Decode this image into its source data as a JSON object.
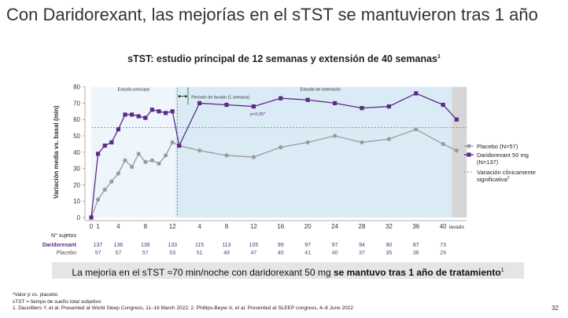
{
  "slide": {
    "title": "Con Daridorexant, las mejorías en el sTST se mantuvieron tras 1 año",
    "chart_title_main": "sTST: estudio principal de 12 semanas y extensión de 40 semanas",
    "chart_title_sup": "1",
    "banner_text": "La mejoría en el sTST ≈70 min/noche con daridorexant 50 mg ",
    "banner_bold": "se mantuvo tras 1 año de tratamiento",
    "banner_sup": "1",
    "footnote_1": "*Valor p vs. placebo",
    "footnote_2": "sTST = tiempo de sueño total subjetivo",
    "footnote_3": "1. Dauvilliers Y, et al. Presented at World Sleep Congress, 11–16 March 2022; 2. Phillips-Beyer A, et al. Presented at SLEEP congress, 4–8 June 2022",
    "page_number": "32"
  },
  "colors": {
    "placebo": "#9a9a9a",
    "daridorexant": "#5b2a86",
    "main_study_bg": "#eef5fb",
    "extension_bg": "#dbebf6",
    "washout_bg": "#ffffff",
    "lavado_bg": "#d6d6d6",
    "threshold": "#777777",
    "washout_arrow": "#2e8b2e"
  },
  "chart_data": {
    "type": "line",
    "title": "sTST: estudio principal de 12 semanas y extensión de 40 semanas",
    "ylabel": "Variación media vs. basal (min)",
    "xlabel": "",
    "ylim": [
      0,
      80
    ],
    "yticks": [
      0,
      10,
      20,
      30,
      40,
      50,
      60,
      70,
      80
    ],
    "threshold": {
      "value": 55,
      "label": "Variación clínicamente significativa",
      "label_sup": "2"
    },
    "regions": {
      "main": "Estudio principal",
      "washout": "Período de lavado (1 semana)",
      "extension": "Estudio de extensión",
      "lavado": "lavado"
    },
    "annotation": "p<0,05*",
    "xticks": [
      {
        "pos": 0,
        "label": "0"
      },
      {
        "pos": 1,
        "label": "1"
      },
      {
        "pos": 4,
        "label": "4"
      },
      {
        "pos": 8,
        "label": "8"
      },
      {
        "pos": 12,
        "label": "12"
      },
      {
        "pos": 16,
        "label": "4"
      },
      {
        "pos": 20,
        "label": "8"
      },
      {
        "pos": 24,
        "label": "12"
      },
      {
        "pos": 28,
        "label": "16"
      },
      {
        "pos": 32,
        "label": "20"
      },
      {
        "pos": 36,
        "label": "24"
      },
      {
        "pos": 40,
        "label": "28"
      },
      {
        "pos": 44,
        "label": "32"
      },
      {
        "pos": 48,
        "label": "36"
      },
      {
        "pos": 52,
        "label": "40"
      },
      {
        "pos": 54,
        "label": "lavado"
      }
    ],
    "series": [
      {
        "name": "Daridorexant 50 mg",
        "name_line2": "(N=137)",
        "points": [
          [
            0,
            0
          ],
          [
            1,
            39
          ],
          [
            2,
            44
          ],
          [
            3,
            46
          ],
          [
            4,
            54
          ],
          [
            5,
            63
          ],
          [
            6,
            63
          ],
          [
            7,
            62
          ],
          [
            8,
            61
          ],
          [
            9,
            66
          ],
          [
            10,
            65
          ],
          [
            11,
            64
          ],
          [
            12,
            65
          ],
          [
            13,
            44
          ],
          [
            16,
            70
          ],
          [
            20,
            69
          ],
          [
            24,
            68
          ],
          [
            28,
            73
          ],
          [
            32,
            72
          ],
          [
            36,
            70
          ],
          [
            40,
            67
          ],
          [
            44,
            68
          ],
          [
            48,
            76
          ],
          [
            52,
            69
          ],
          [
            54,
            60
          ]
        ]
      },
      {
        "name": "Placebo (N=57)",
        "name_line2": "",
        "points": [
          [
            0,
            0
          ],
          [
            1,
            11
          ],
          [
            2,
            17
          ],
          [
            3,
            22
          ],
          [
            4,
            27
          ],
          [
            5,
            35
          ],
          [
            6,
            31
          ],
          [
            7,
            39
          ],
          [
            8,
            34
          ],
          [
            9,
            35
          ],
          [
            10,
            33
          ],
          [
            11,
            38
          ],
          [
            12,
            46
          ],
          [
            13,
            44
          ],
          [
            16,
            41
          ],
          [
            20,
            38
          ],
          [
            24,
            37
          ],
          [
            28,
            43
          ],
          [
            32,
            46
          ],
          [
            36,
            50
          ],
          [
            40,
            46
          ],
          [
            44,
            48
          ],
          [
            48,
            54
          ],
          [
            52,
            45
          ],
          [
            54,
            41
          ]
        ]
      }
    ],
    "subjects": {
      "header": "N° sujetos",
      "positions": [
        1,
        4,
        8,
        12,
        16,
        20,
        24,
        28,
        32,
        36,
        40,
        44,
        48,
        52
      ],
      "rows": [
        {
          "label": "Daridorexant",
          "values": [
            "137",
            "136",
            "136",
            "133",
            "115",
            "113",
            "105",
            "99",
            "97",
            "97",
            "94",
            "90",
            "87",
            "73"
          ]
        },
        {
          "label": "Placebo",
          "values": [
            "57",
            "57",
            "57",
            "53",
            "51",
            "48",
            "47",
            "40",
            "41",
            "40",
            "37",
            "35",
            "36",
            "26"
          ]
        }
      ]
    }
  }
}
